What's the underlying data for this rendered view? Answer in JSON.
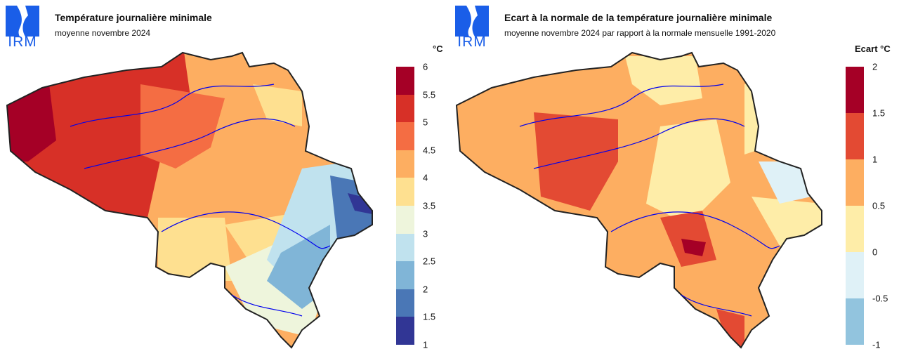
{
  "left": {
    "logo_text": "IRM",
    "title": "Température journalière minimale",
    "subtitle": "moyenne novembre 2024",
    "unit": "°C",
    "legend": {
      "ticks": [
        "6",
        "5.5",
        "5",
        "4.5",
        "4",
        "3.5",
        "3",
        "2.5",
        "2",
        "1.5",
        "1"
      ],
      "colors": [
        "#a50026",
        "#d73027",
        "#f46d43",
        "#fdae61",
        "#fee090",
        "#eef5dc",
        "#c0e2ee",
        "#80b5d7",
        "#4a77b6",
        "#313695"
      ]
    }
  },
  "right": {
    "logo_text": "IRM",
    "title": "Ecart à la normale de la température journalière minimale",
    "subtitle": "moyenne novembre 2024 par rapport à la normale mensuelle 1991-2020",
    "unit": "Ecart °C",
    "legend": {
      "ticks": [
        "2",
        "1.5",
        "1",
        "0.5",
        "0",
        "-0.5",
        "-1"
      ],
      "colors": [
        "#a50026",
        "#e34a33",
        "#fdae61",
        "#feeda8",
        "#dff1f7",
        "#92c4de"
      ]
    }
  }
}
